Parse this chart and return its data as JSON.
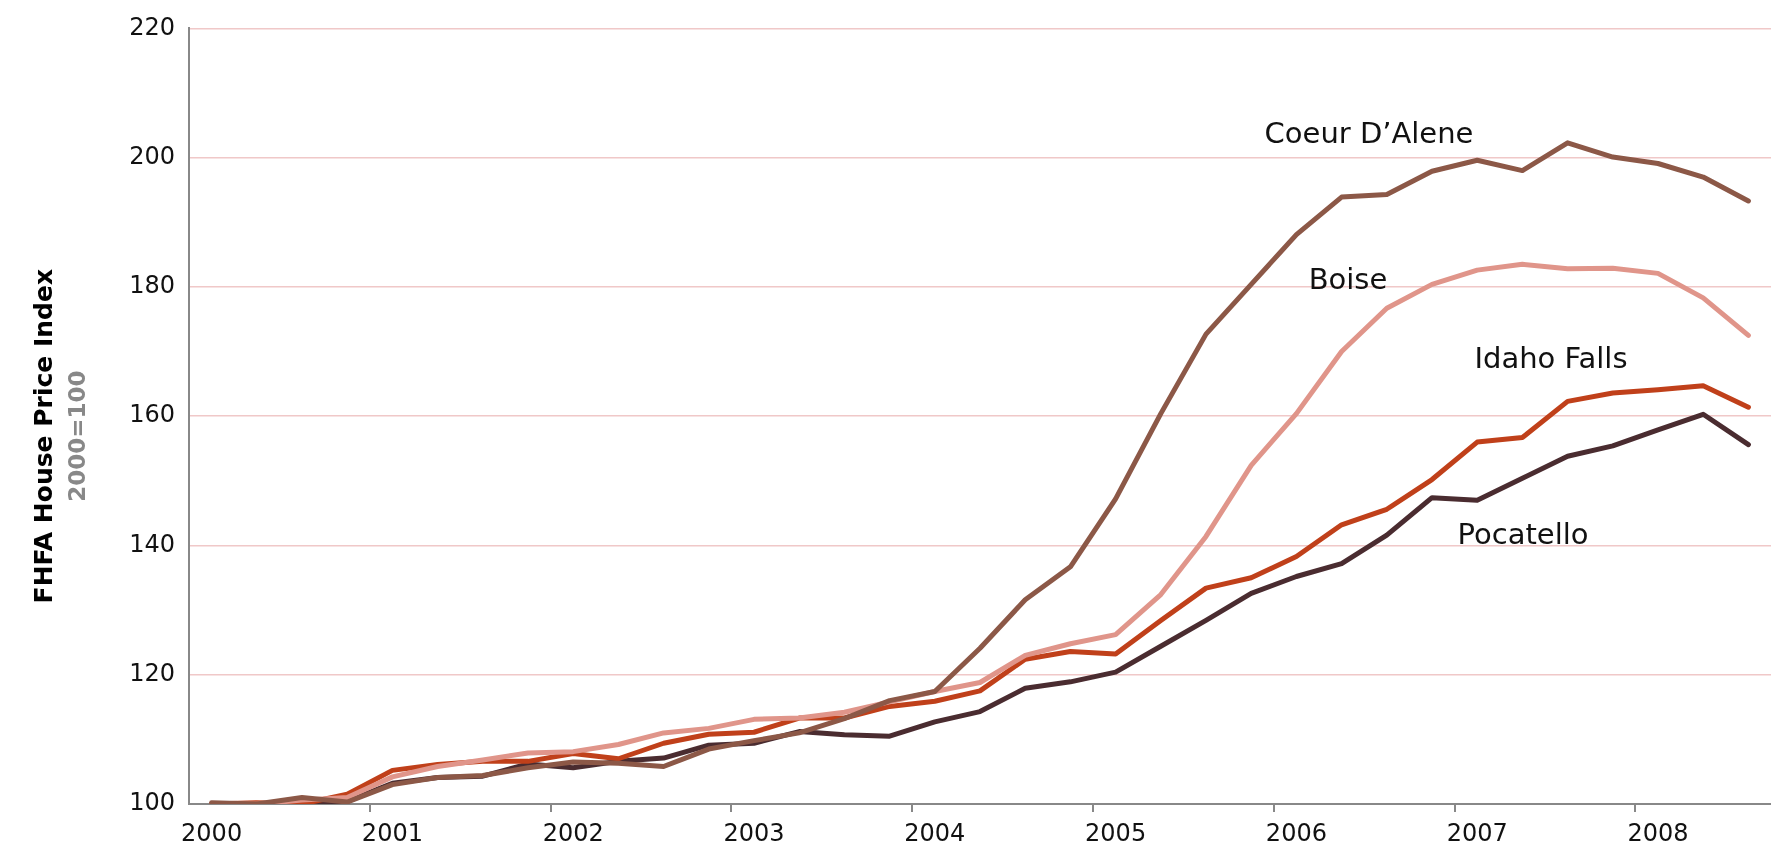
{
  "chart_data": {
    "type": "line",
    "ylabel": "FHFA House Price Index",
    "annotations": [
      "2000=100"
    ],
    "categories": [
      "2000",
      null,
      null,
      null,
      "2001",
      null,
      null,
      null,
      "2002",
      null,
      null,
      null,
      "2003",
      null,
      null,
      null,
      "2004",
      null,
      null,
      null,
      "2005",
      null,
      null,
      null,
      "2006",
      null,
      null,
      null,
      "2007",
      null,
      null,
      null,
      "2008",
      null,
      null
    ],
    "ylim": [
      100,
      220
    ],
    "yticks": [
      100,
      120,
      140,
      160,
      180,
      200,
      220
    ],
    "grid": "y",
    "legend": false,
    "marker": "none",
    "line_style": "solid",
    "series": [
      {
        "name": "Coeur D’Alene",
        "color": "#8c5847",
        "values": [
          100.2,
          100,
          101,
          100.3,
          103,
          104.1,
          104.4,
          105.6,
          106.5,
          106.3,
          105.8,
          108.5,
          109.8,
          111,
          113.2,
          116,
          117.4,
          124.1,
          131.6,
          136.7,
          147.2,
          160.4,
          172.7,
          180.4,
          188.1,
          193.9,
          194.3,
          197.9,
          199.6,
          198,
          202.3,
          200.1,
          199.1,
          197,
          193.3
        ]
      },
      {
        "name": "Boise",
        "color": "#e0958a",
        "values": [
          100,
          100,
          100.6,
          101,
          104.2,
          105.8,
          106.8,
          107.9,
          108.1,
          109.2,
          111,
          111.7,
          113.1,
          113.3,
          114.2,
          115.8,
          117.4,
          118.8,
          123,
          124.8,
          126.2,
          132.4,
          141.4,
          152.4,
          160.4,
          170,
          176.7,
          180.4,
          182.6,
          183.5,
          182.8,
          182.9,
          182.1,
          178.3,
          172.5
        ]
      },
      {
        "name": "Idaho Falls",
        "color": "#c0401a",
        "values": [
          100,
          100.2,
          100,
          101.5,
          105.2,
          106.1,
          106.6,
          106.6,
          107.8,
          107,
          109.4,
          110.8,
          111.1,
          113.3,
          113.3,
          115.1,
          115.9,
          117.5,
          122.4,
          123.6,
          123.2,
          128.4,
          133.4,
          135,
          138.3,
          143.2,
          145.6,
          150.2,
          156,
          156.7,
          162.3,
          163.6,
          164.1,
          164.7,
          161.4
        ]
      },
      {
        "name": "Pocatello",
        "color": "#4a2c30",
        "values": [
          100,
          100,
          100,
          100.4,
          103.2,
          104.1,
          104.3,
          106.2,
          105.6,
          106.6,
          107.1,
          109.1,
          109.4,
          111.2,
          110.7,
          110.5,
          112.7,
          114.3,
          117.9,
          118.9,
          120.4,
          124.4,
          128.4,
          132.6,
          135.2,
          137.2,
          141.6,
          147.4,
          147,
          150.4,
          153.8,
          155.4,
          157.9,
          160.3,
          155.6
        ]
      }
    ]
  }
}
